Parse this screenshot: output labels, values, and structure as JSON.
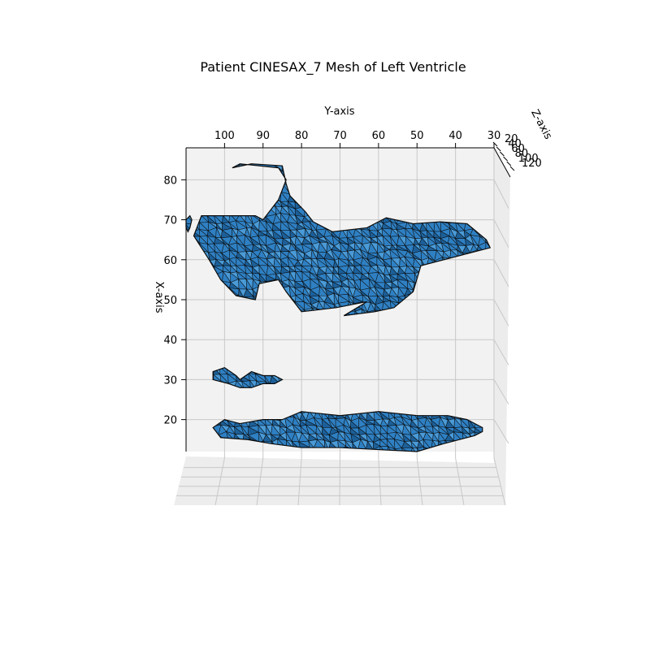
{
  "chart_data": {
    "type": "mesh3d",
    "title": "Patient CINESAX_7 Mesh of Left Ventricle",
    "xlabel": "X-axis",
    "ylabel": "Y-axis",
    "zlabel": "Z-axis",
    "x_ticks": [
      20,
      30,
      40,
      50,
      60,
      70,
      80
    ],
    "y_ticks": [
      100,
      90,
      80,
      70,
      60,
      50,
      40,
      30
    ],
    "z_ticks": [
      20,
      40,
      60,
      80,
      100,
      120
    ],
    "xlim": [
      12,
      88
    ],
    "ylim": [
      110,
      30
    ],
    "zlim": [
      15,
      125
    ],
    "grid": true,
    "colors": {
      "face": "#2f80c3",
      "face_light": "#4a9ad6",
      "face_dark": "#1c5f98",
      "edge": "#0b0b0b",
      "pane": "#f2f2f2",
      "grid": "#c8c8c8"
    },
    "components": [
      {
        "name": "upper-mesh",
        "outline": [
          [
            83,
            98
          ],
          [
            84,
            93
          ],
          [
            83.5,
            85
          ],
          [
            79,
            84
          ],
          [
            76,
            83
          ],
          [
            72,
            79
          ],
          [
            69.5,
            77
          ],
          [
            67,
            72
          ],
          [
            68,
            63
          ],
          [
            70.5,
            58
          ],
          [
            69,
            51
          ],
          [
            69.5,
            44
          ],
          [
            69,
            37
          ],
          [
            65,
            32
          ],
          [
            63,
            31
          ],
          [
            58.5,
            49
          ],
          [
            52,
            51
          ],
          [
            48,
            56
          ],
          [
            47,
            61
          ],
          [
            46,
            69
          ],
          [
            49.5,
            63
          ],
          [
            48,
            71
          ],
          [
            47,
            80
          ],
          [
            52,
            84
          ],
          [
            55,
            86
          ],
          [
            54,
            91
          ],
          [
            50,
            92
          ],
          [
            51,
            97
          ],
          [
            55,
            101
          ],
          [
            60,
            104
          ],
          [
            66,
            108
          ],
          [
            71,
            106
          ],
          [
            71,
            92
          ],
          [
            70,
            90
          ],
          [
            75,
            86
          ],
          [
            80,
            84
          ],
          [
            83,
            86
          ],
          [
            84,
            96
          ]
        ]
      },
      {
        "name": "middle-blob",
        "outline": [
          [
            32,
            103
          ],
          [
            33,
            100
          ],
          [
            31,
            97
          ],
          [
            30,
            96
          ],
          [
            32,
            93
          ],
          [
            31,
            90
          ],
          [
            31,
            87
          ],
          [
            30,
            85
          ],
          [
            29,
            87
          ],
          [
            29,
            90
          ],
          [
            28,
            93
          ],
          [
            28,
            96
          ],
          [
            29,
            99
          ],
          [
            30,
            103
          ]
        ]
      },
      {
        "name": "lower-mesh",
        "outline": [
          [
            20,
            85
          ],
          [
            22,
            80
          ],
          [
            21,
            70
          ],
          [
            22,
            60
          ],
          [
            21,
            50
          ],
          [
            21,
            42
          ],
          [
            20,
            37
          ],
          [
            18,
            33
          ],
          [
            17,
            33
          ],
          [
            16,
            35
          ],
          [
            14,
            43
          ],
          [
            12,
            50
          ],
          [
            12.5,
            60
          ],
          [
            13,
            70
          ],
          [
            13,
            80
          ],
          [
            14,
            88
          ],
          [
            15,
            94
          ],
          [
            15.5,
            101
          ],
          [
            18,
            103
          ],
          [
            20,
            100
          ],
          [
            19,
            96
          ],
          [
            20,
            90
          ]
        ]
      },
      {
        "name": "edge-fragment",
        "outline": [
          [
            71,
            109
          ],
          [
            70,
            108.5
          ],
          [
            68,
            109
          ],
          [
            67,
            109.5
          ],
          [
            68,
            110
          ],
          [
            70,
            110
          ]
        ]
      }
    ]
  }
}
